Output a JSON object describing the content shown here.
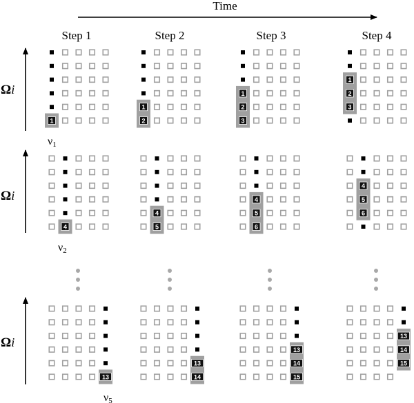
{
  "time_label": "Time",
  "steps": [
    "Step 1",
    "Step 2",
    "Step 3",
    "Step 4"
  ],
  "omega_label": "Ω",
  "omega_sub": "i",
  "grid": {
    "rows": 6,
    "cols": 5
  },
  "rows": [
    {
      "node_label": "ν",
      "node_sub": "1",
      "column": 0,
      "steps": [
        {
          "fill_rows": [
            0,
            1,
            2,
            3,
            4
          ],
          "highlight": [
            {
              "row": 5,
              "num": "1"
            }
          ]
        },
        {
          "fill_rows": [
            0,
            1,
            2,
            3
          ],
          "highlight": [
            {
              "row": 4,
              "num": "1"
            },
            {
              "row": 5,
              "num": "2"
            }
          ]
        },
        {
          "fill_rows": [
            0,
            1,
            2
          ],
          "highlight": [
            {
              "row": 3,
              "num": "1"
            },
            {
              "row": 4,
              "num": "2"
            },
            {
              "row": 5,
              "num": "3"
            }
          ]
        },
        {
          "fill_rows": [
            0,
            1,
            5
          ],
          "highlight": [
            {
              "row": 2,
              "num": "1"
            },
            {
              "row": 3,
              "num": "2"
            },
            {
              "row": 4,
              "num": "3"
            }
          ]
        }
      ]
    },
    {
      "node_label": "ν",
      "node_sub": "2",
      "column": 1,
      "steps": [
        {
          "fill_rows": [
            0,
            1,
            2,
            3,
            4
          ],
          "highlight": [
            {
              "row": 5,
              "num": "4"
            }
          ]
        },
        {
          "fill_rows": [
            0,
            1,
            2,
            3
          ],
          "highlight": [
            {
              "row": 4,
              "num": "4"
            },
            {
              "row": 5,
              "num": "5"
            }
          ]
        },
        {
          "fill_rows": [
            0,
            1,
            2
          ],
          "highlight": [
            {
              "row": 3,
              "num": "4"
            },
            {
              "row": 4,
              "num": "5"
            },
            {
              "row": 5,
              "num": "6"
            }
          ]
        },
        {
          "fill_rows": [
            0,
            1,
            5
          ],
          "highlight": [
            {
              "row": 2,
              "num": "4"
            },
            {
              "row": 3,
              "num": "5"
            },
            {
              "row": 4,
              "num": "6"
            }
          ]
        }
      ]
    },
    {
      "node_label": "ν",
      "node_sub": "5",
      "column": 4,
      "steps": [
        {
          "fill_rows": [
            0,
            1,
            2,
            3,
            4
          ],
          "highlight": [
            {
              "row": 5,
              "num": "13"
            }
          ]
        },
        {
          "fill_rows": [
            0,
            1,
            2,
            3
          ],
          "highlight": [
            {
              "row": 4,
              "num": "13"
            },
            {
              "row": 5,
              "num": "14"
            }
          ]
        },
        {
          "fill_rows": [
            0,
            1,
            2
          ],
          "highlight": [
            {
              "row": 3,
              "num": "13"
            },
            {
              "row": 4,
              "num": "14"
            },
            {
              "row": 5,
              "num": "15"
            }
          ]
        },
        {
          "fill_rows": [
            0,
            1
          ],
          "highlight": [
            {
              "row": 2,
              "num": "13"
            },
            {
              "row": 3,
              "num": "14"
            },
            {
              "row": 4,
              "num": "15"
            }
          ]
        }
      ]
    }
  ]
}
